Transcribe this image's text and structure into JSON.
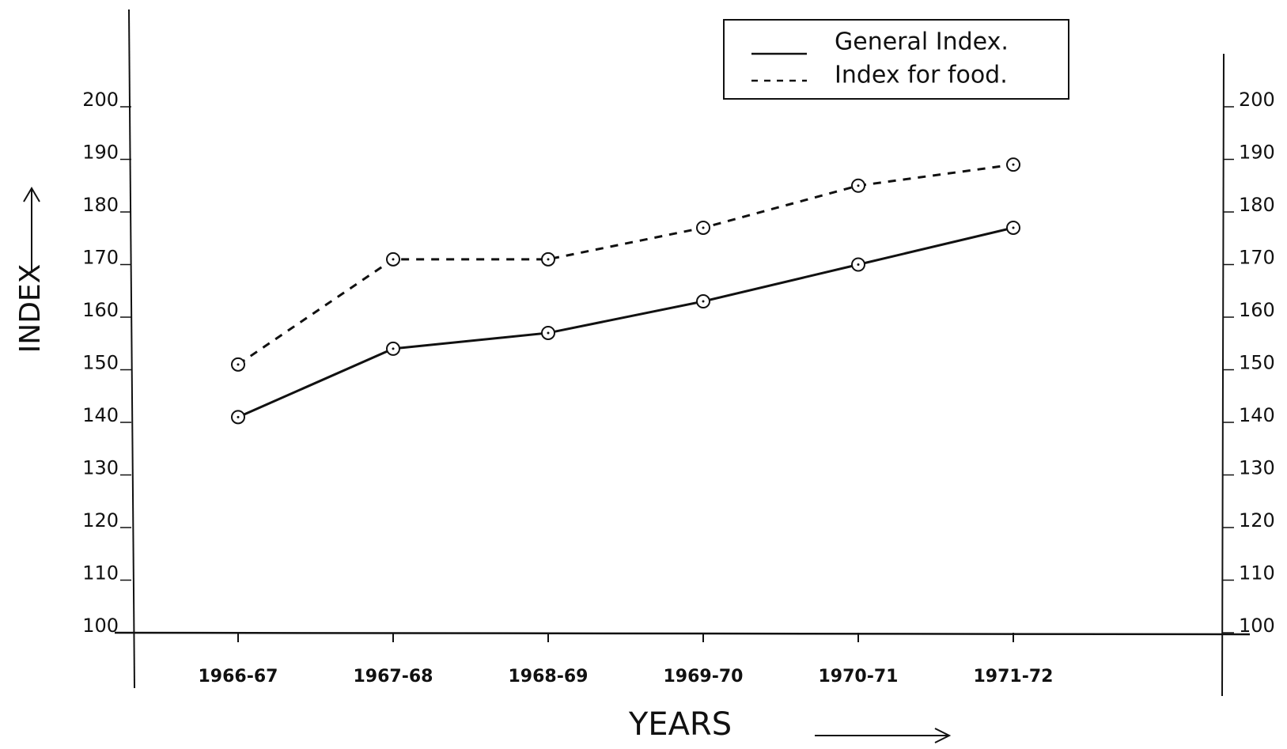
{
  "chart_data": {
    "type": "line",
    "x_label": "YEARS",
    "y_label": "INDEX",
    "categories": [
      "1966-67",
      "1967-68",
      "1968-69",
      "1969-70",
      "1970-71",
      "1971-72"
    ],
    "series": [
      {
        "name": "General Index.",
        "color": "#111111",
        "dash": "solid",
        "values": [
          141,
          154,
          157,
          163,
          170,
          177
        ]
      },
      {
        "name": "Index for food.",
        "color": "#111111",
        "dash": "dashed",
        "values": [
          151,
          171,
          171,
          177,
          185,
          189
        ]
      }
    ],
    "ylim": [
      100,
      200
    ],
    "yticks": [
      100,
      110,
      120,
      130,
      140,
      150,
      160,
      170,
      180,
      190,
      200
    ],
    "y2lim": [
      100,
      200
    ],
    "y2ticks": [
      100,
      110,
      120,
      130,
      140,
      150,
      160,
      170,
      180,
      190,
      200
    ],
    "legend": "upper right",
    "grid": false
  }
}
